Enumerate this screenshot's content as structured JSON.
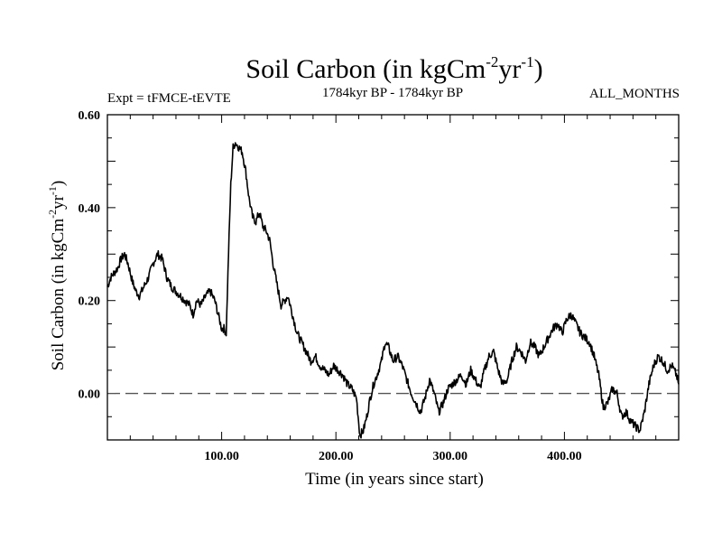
{
  "chart_data": {
    "type": "line",
    "title": {
      "main": "Soil Carbon (in kgCm",
      "sup1": "-2",
      "mid": "yr",
      "sup2": "-1",
      "end": ")"
    },
    "expt_label": "Expt = tFMCE-tEVTE",
    "period_label": "1784kyr BP - 1784kyr BP",
    "months_label": "ALL_MONTHS",
    "xlabel": "Time (in years since start)",
    "ylabel": {
      "main": "Soil Carbon (in kgCm",
      "sup1": "-2",
      "mid": "yr",
      "sup2": "-1",
      "end": ")"
    },
    "xlim": [
      0,
      500
    ],
    "ylim": [
      -0.1,
      0.6
    ],
    "x_ticks": [
      {
        "value": 100,
        "label": "100.00"
      },
      {
        "value": 200,
        "label": "200.00"
      },
      {
        "value": 300,
        "label": "300.00"
      },
      {
        "value": 400,
        "label": "400.00"
      }
    ],
    "y_ticks": [
      {
        "value": 0.0,
        "label": "0.00"
      },
      {
        "value": 0.2,
        "label": "0.20"
      },
      {
        "value": 0.4,
        "label": "0.40"
      },
      {
        "value": 0.6,
        "label": "0.60"
      }
    ],
    "reference_line": {
      "y": 0.0,
      "style": "dashed"
    },
    "series": [
      {
        "x": [
          0,
          3,
          6,
          9,
          12,
          15,
          18,
          22,
          25,
          28,
          32,
          36,
          40,
          44,
          48,
          52,
          56,
          60,
          64,
          68,
          72,
          75,
          78,
          82,
          86,
          90,
          94,
          97,
          100,
          102,
          104,
          106,
          108,
          110,
          112,
          115,
          118,
          121,
          124,
          127,
          130,
          133,
          136,
          139,
          142,
          145,
          148,
          152,
          155,
          158,
          162,
          166,
          170,
          174,
          178,
          182,
          186,
          190,
          194,
          198,
          202,
          206,
          210,
          214,
          218,
          221,
          224,
          227,
          230,
          233,
          236,
          240,
          243,
          246,
          250,
          254,
          258,
          262,
          266,
          270,
          274,
          278,
          282,
          286,
          290,
          294,
          298,
          302,
          306,
          310,
          314,
          318,
          322,
          326,
          330,
          334,
          338,
          342,
          346,
          350,
          354,
          358,
          362,
          366,
          370,
          374,
          378,
          382,
          386,
          390,
          394,
          398,
          402,
          406,
          410,
          414,
          418,
          422,
          426,
          430,
          434,
          438,
          442,
          446,
          450,
          454,
          458,
          462,
          466,
          470,
          474,
          478,
          482,
          486,
          490,
          494,
          498,
          500
        ],
        "y": [
          0.23,
          0.25,
          0.26,
          0.27,
          0.29,
          0.3,
          0.28,
          0.24,
          0.22,
          0.21,
          0.23,
          0.25,
          0.28,
          0.3,
          0.29,
          0.25,
          0.23,
          0.22,
          0.21,
          0.2,
          0.19,
          0.17,
          0.2,
          0.19,
          0.21,
          0.22,
          0.2,
          0.17,
          0.14,
          0.14,
          0.13,
          0.3,
          0.45,
          0.53,
          0.54,
          0.53,
          0.52,
          0.48,
          0.42,
          0.38,
          0.37,
          0.39,
          0.36,
          0.35,
          0.33,
          0.28,
          0.24,
          0.19,
          0.2,
          0.21,
          0.17,
          0.13,
          0.11,
          0.09,
          0.07,
          0.08,
          0.06,
          0.05,
          0.04,
          0.06,
          0.05,
          0.04,
          0.02,
          0.01,
          -0.01,
          -0.09,
          -0.08,
          -0.05,
          -0.01,
          0.02,
          0.04,
          0.07,
          0.11,
          0.1,
          0.07,
          0.08,
          0.06,
          0.03,
          0.0,
          -0.02,
          -0.04,
          -0.01,
          0.03,
          0.0,
          -0.04,
          -0.02,
          0.01,
          0.02,
          0.03,
          0.04,
          0.02,
          0.05,
          0.03,
          0.01,
          0.05,
          0.08,
          0.09,
          0.05,
          0.02,
          0.03,
          0.07,
          0.1,
          0.09,
          0.07,
          0.11,
          0.1,
          0.08,
          0.1,
          0.12,
          0.14,
          0.15,
          0.13,
          0.16,
          0.17,
          0.15,
          0.13,
          0.12,
          0.11,
          0.08,
          0.04,
          -0.03,
          -0.02,
          0.01,
          0.0,
          -0.05,
          -0.04,
          -0.06,
          -0.07,
          -0.08,
          -0.04,
          0.02,
          0.06,
          0.08,
          0.07,
          0.05,
          0.06,
          0.04,
          0.02
        ]
      }
    ]
  }
}
